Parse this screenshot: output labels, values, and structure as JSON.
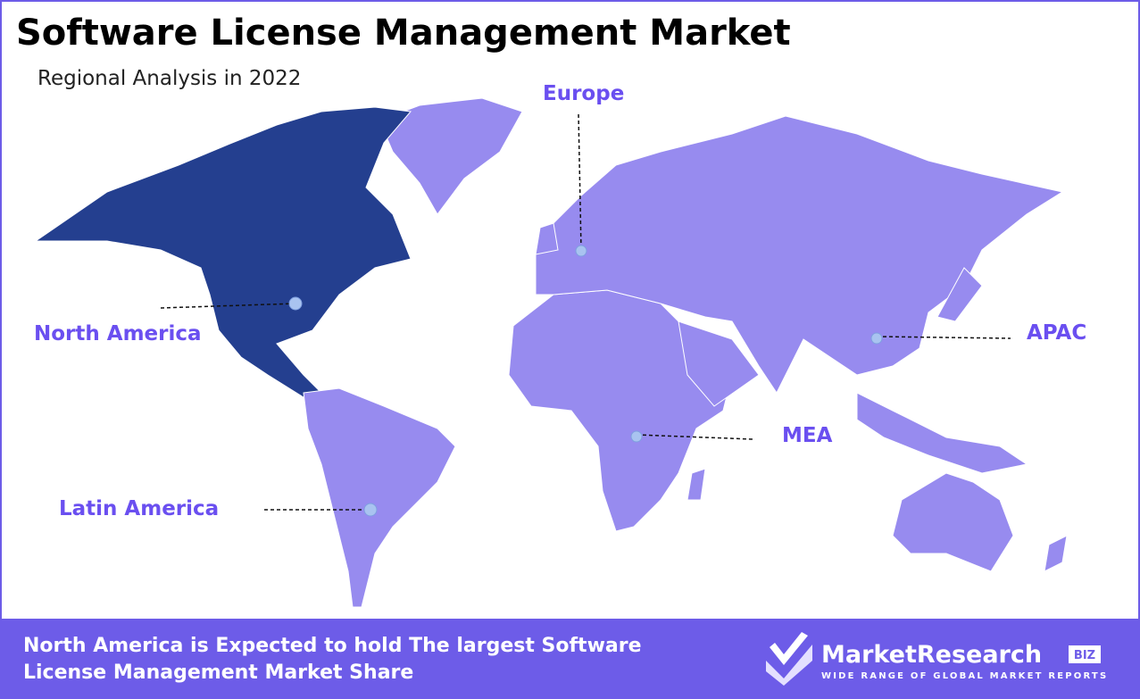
{
  "header": {
    "title": "Software License Management Market",
    "subtitle": "Regional Analysis in 2022"
  },
  "regions": [
    {
      "label": "North America"
    },
    {
      "label": "Europe"
    },
    {
      "label": "APAC"
    },
    {
      "label": "MEA"
    },
    {
      "label": "Latin America"
    }
  ],
  "footer": {
    "lines": [
      "North America is Expected to hold The largest Software",
      "License Management Market Share"
    ],
    "logo": {
      "name": "MarketResearch",
      "badge": "BIZ",
      "tagline": "WIDE RANGE OF GLOBAL MARKET REPORTS"
    }
  }
}
